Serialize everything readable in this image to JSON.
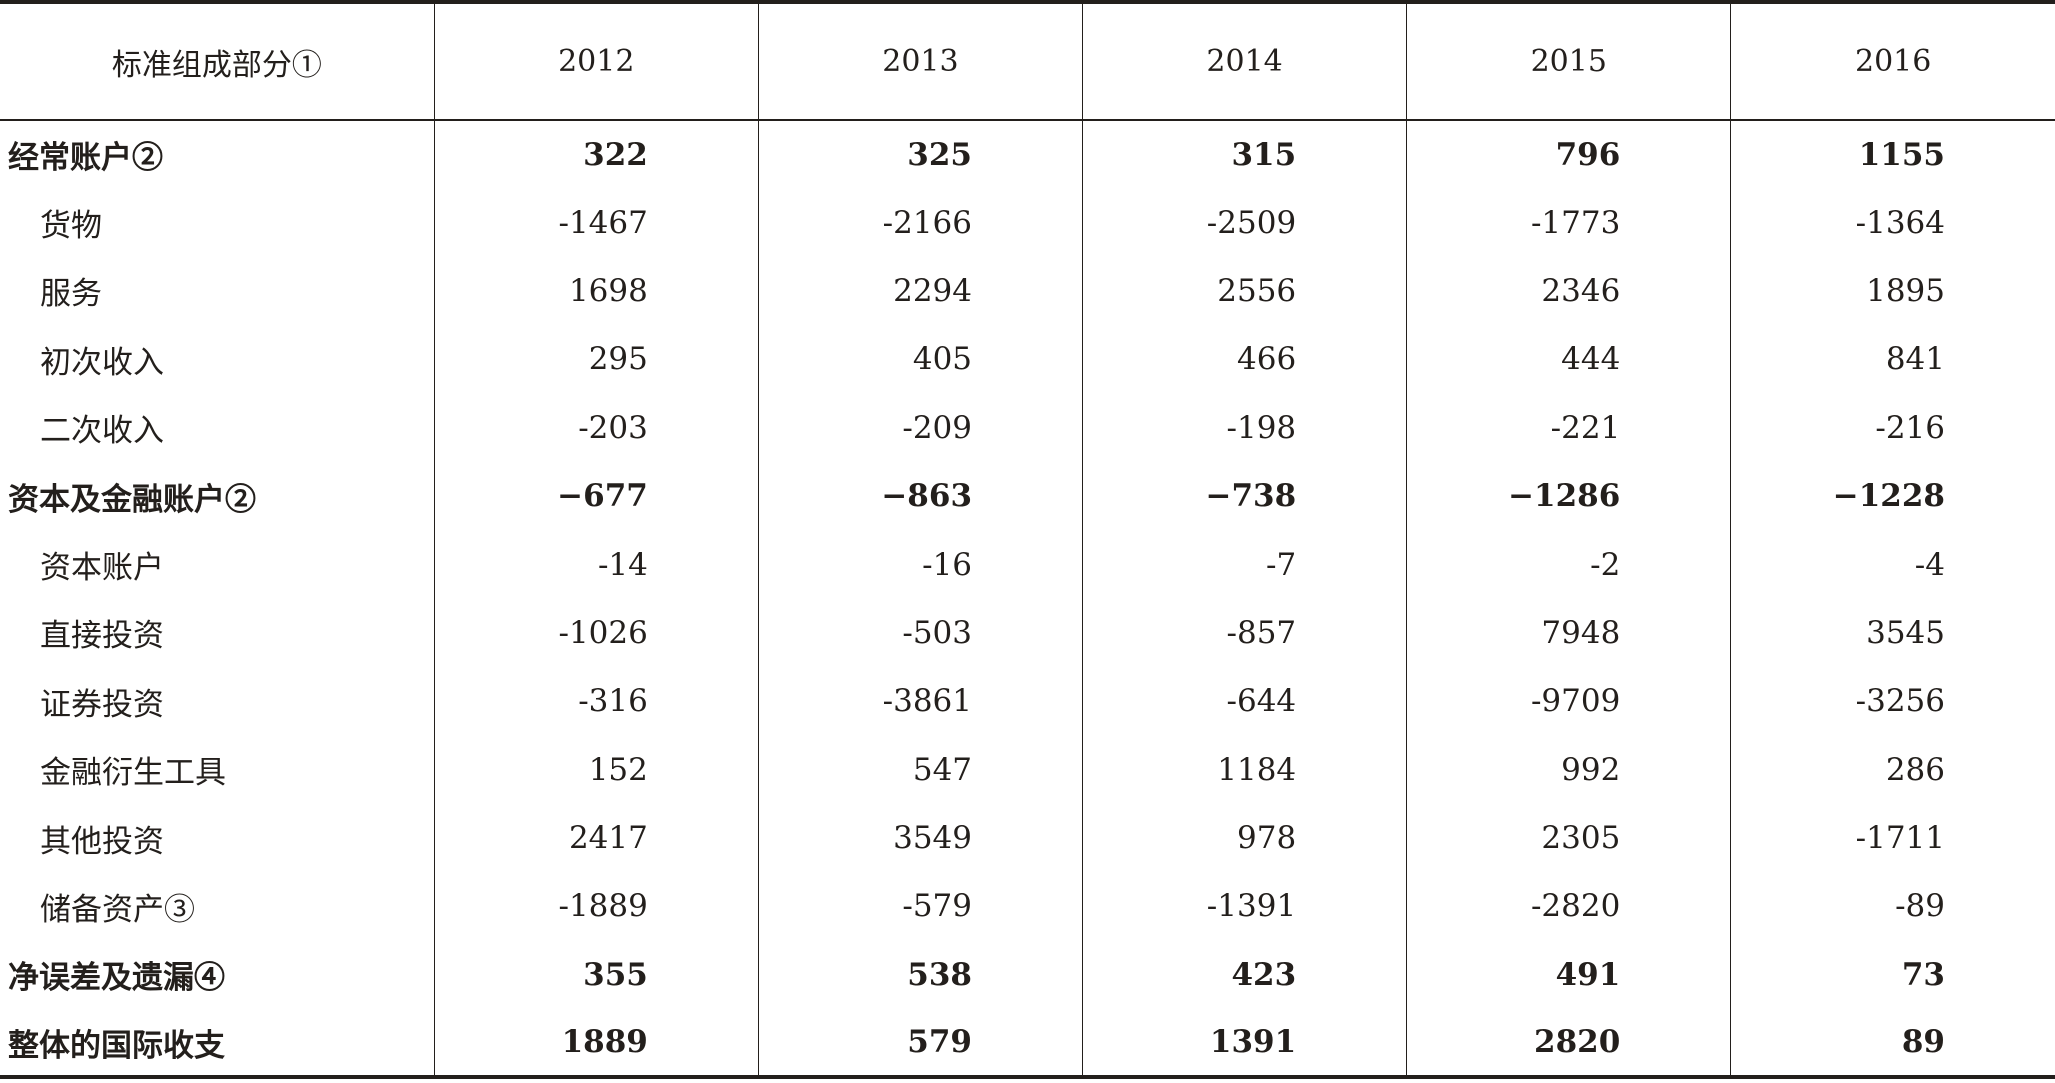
{
  "table": {
    "header": {
      "label": "标准组成部分①",
      "years": [
        "2012",
        "2013",
        "2014",
        "2015",
        "2016"
      ]
    },
    "rows": [
      {
        "label": "经常账户②",
        "bold": true,
        "values": [
          "322",
          "325",
          "315",
          "796",
          "1155"
        ]
      },
      {
        "label": "货物",
        "bold": false,
        "values": [
          "-1467",
          "-2166",
          "-2509",
          "-1773",
          "-1364"
        ]
      },
      {
        "label": "服务",
        "bold": false,
        "values": [
          "1698",
          "2294",
          "2556",
          "2346",
          "1895"
        ]
      },
      {
        "label": "初次收入",
        "bold": false,
        "values": [
          "295",
          "405",
          "466",
          "444",
          "841"
        ]
      },
      {
        "label": "二次收入",
        "bold": false,
        "values": [
          "-203",
          "-209",
          "-198",
          "-221",
          "-216"
        ]
      },
      {
        "label": "资本及金融账户②",
        "bold": true,
        "values": [
          "−677",
          "−863",
          "−738",
          "−1286",
          "−1228"
        ]
      },
      {
        "label": "资本账户",
        "bold": false,
        "values": [
          "-14",
          "-16",
          "-7",
          "-2",
          "-4"
        ]
      },
      {
        "label": "直接投资",
        "bold": false,
        "values": [
          "-1026",
          "-503",
          "-857",
          "7948",
          "3545"
        ]
      },
      {
        "label": "证券投资",
        "bold": false,
        "values": [
          "-316",
          "-3861",
          "-644",
          "-9709",
          "-3256"
        ]
      },
      {
        "label": "金融衍生工具",
        "bold": false,
        "values": [
          "152",
          "547",
          "1184",
          "992",
          "286"
        ]
      },
      {
        "label": "其他投资",
        "bold": false,
        "values": [
          "2417",
          "3549",
          "978",
          "2305",
          "-1711"
        ]
      },
      {
        "label": "储备资产③",
        "bold": false,
        "values": [
          "-1889",
          "-579",
          "-1391",
          "-2820",
          "-89"
        ]
      },
      {
        "label": "净误差及遗漏④",
        "bold": true,
        "values": [
          "355",
          "538",
          "423",
          "491",
          "73"
        ]
      },
      {
        "label": "整体的国际收支",
        "bold": true,
        "values": [
          "1889",
          "579",
          "1391",
          "2820",
          "89"
        ]
      }
    ]
  }
}
